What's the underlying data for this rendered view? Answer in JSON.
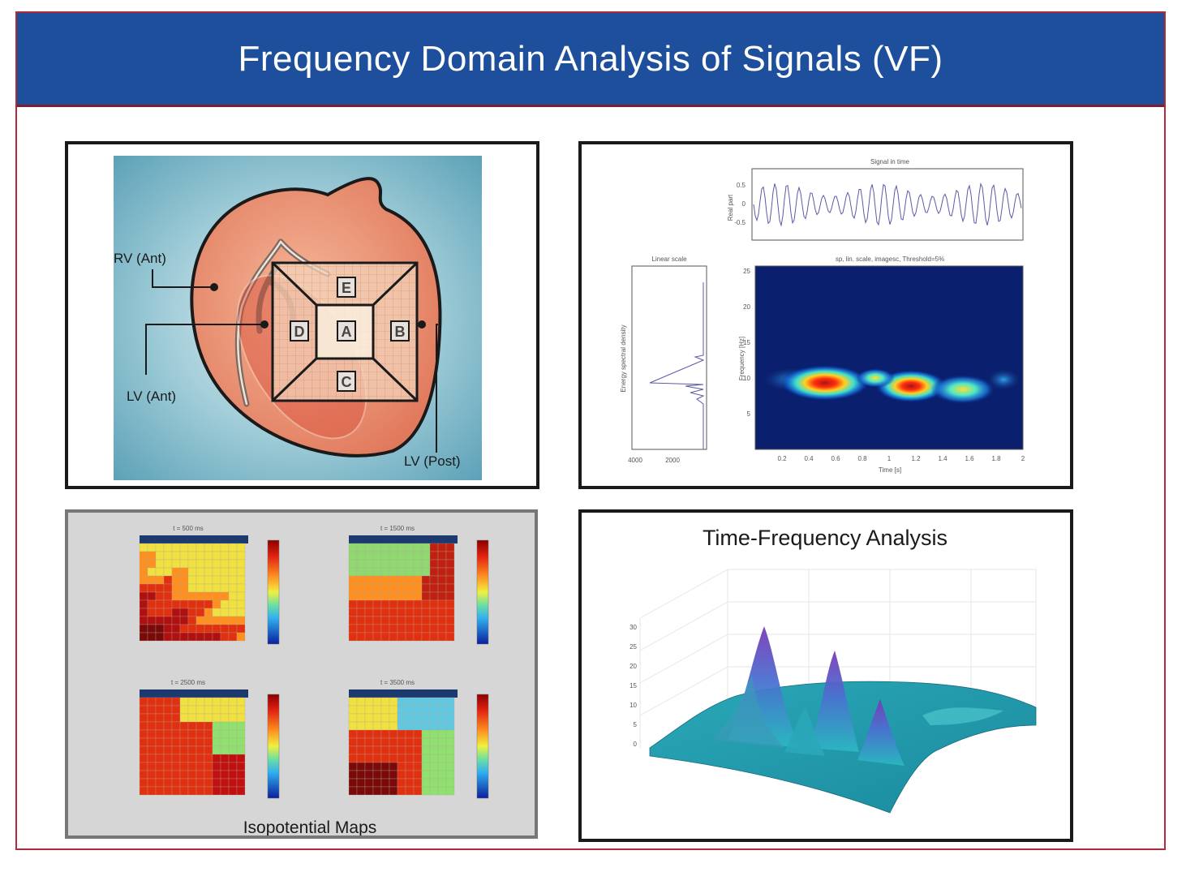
{
  "title": "Frequency Domain Analysis of Signals (VF)",
  "heart_panel": {
    "labels": [
      "RV (Ant)",
      "LV (Ant)",
      "LV (Post)"
    ],
    "electrodes": [
      "E",
      "D",
      "A",
      "B",
      "C"
    ]
  },
  "spectrogram_panel": {
    "top_title": "Signal in time",
    "top_ylabel": "Real part",
    "top_yticks": [
      "0.5",
      "0",
      "-0.5"
    ],
    "left_title": "Linear scale",
    "left_ylabel": "Energy spectral density",
    "left_xticks": [
      "4000",
      "2000"
    ],
    "main_title": "sp, lin. scale, imagesc, Threshold=5%",
    "main_ylabel": "Frequency [Hz]",
    "main_yticks": [
      "25",
      "20",
      "15",
      "10",
      "5"
    ],
    "main_xticks": [
      "0.2",
      "0.4",
      "0.6",
      "0.8",
      "1",
      "1.2",
      "1.4",
      "1.6",
      "1.8",
      "2"
    ],
    "main_xlabel": "Time [s]"
  },
  "isopotential_panel": {
    "caption": "Isopotential Maps",
    "maps": [
      {
        "label": "t = 500 ms"
      },
      {
        "label": "t = 1500 ms"
      },
      {
        "label": "t = 2500 ms"
      },
      {
        "label": "t = 3500 ms"
      }
    ]
  },
  "tfa_panel": {
    "title": "Time-Frequency Analysis",
    "zticks": [
      "30",
      "25",
      "20",
      "15",
      "10",
      "5",
      "0"
    ]
  },
  "colors": {
    "header": "#1d4f9c",
    "border": "#b02a3a",
    "heart": "#e8866a",
    "jet_high": "#d01010",
    "jet_low": "#0a1f6e"
  }
}
